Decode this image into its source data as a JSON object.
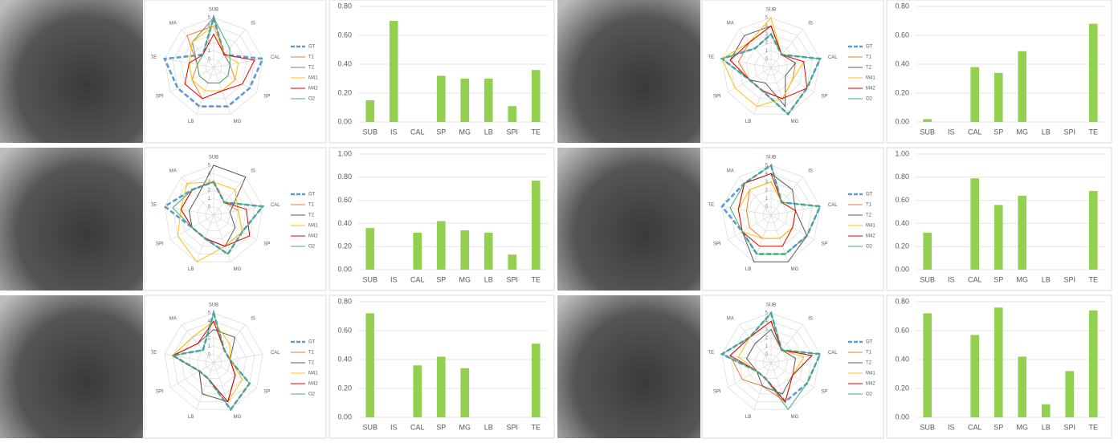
{
  "chart_data": [
    {
      "type": "radar",
      "axes": [
        "SUB",
        "IS",
        "CAL",
        "SP",
        "MG",
        "LB",
        "SPI",
        "TE",
        "MA"
      ],
      "rlim": [
        -1,
        5
      ],
      "rticks": [
        0,
        1,
        2,
        3,
        4,
        5
      ],
      "series": [
        {
          "name": "GT",
          "color": "#5b9bd5",
          "dash": true,
          "values": [
            5,
            1,
            5,
            4,
            4,
            4,
            4,
            5,
            1
          ]
        },
        {
          "name": "T1",
          "color": "#ed7d31",
          "values": [
            4,
            1,
            1,
            2,
            2,
            3,
            2,
            1,
            4
          ]
        },
        {
          "name": "T2",
          "color": "#7f7f7f",
          "values": [
            5,
            1,
            1,
            1,
            1,
            1,
            1,
            1,
            3
          ]
        },
        {
          "name": "M41",
          "color": "#ffc000",
          "values": [
            4,
            1,
            2,
            2,
            2,
            2,
            2,
            2,
            3
          ]
        },
        {
          "name": "M42",
          "color": "#e00000",
          "values": [
            3,
            1,
            4,
            3,
            2,
            3,
            3,
            2,
            1
          ]
        },
        {
          "name": "O2",
          "color": "#3fae73",
          "values": [
            5,
            2,
            1,
            1,
            1,
            1,
            1,
            1,
            1
          ]
        }
      ]
    },
    {
      "type": "bar",
      "categories": [
        "SUB",
        "IS",
        "CAL",
        "SP",
        "MG",
        "LB",
        "SPI",
        "TE"
      ],
      "values": [
        0.15,
        0.7,
        0,
        0.32,
        0.3,
        0.3,
        0.11,
        0.36
      ],
      "color": "#92d050",
      "ylim": [
        0,
        0.8
      ],
      "yticks": [
        {
          "value": 0,
          "label": "0.00"
        },
        {
          "value": 0.2,
          "label": "0.20"
        },
        {
          "value": 0.4,
          "label": "0.40"
        },
        {
          "value": 0.6,
          "label": "0.60"
        },
        {
          "value": 0.8,
          "label": "0.80"
        }
      ],
      "grid": true
    },
    {
      "type": "radar",
      "axes": [
        "SUB",
        "IS",
        "CAL",
        "SP",
        "MG",
        "LB",
        "SPI",
        "TE",
        "MA"
      ],
      "rlim": [
        -1,
        5
      ],
      "rticks": [
        0,
        1,
        2,
        3,
        4,
        5
      ],
      "series": [
        {
          "name": "GT",
          "color": "#5b9bd5",
          "dash": true,
          "values": [
            3,
            1,
            5,
            4,
            5,
            2,
            2,
            5,
            2
          ]
        },
        {
          "name": "T1",
          "color": "#ed7d31",
          "values": [
            4,
            1,
            2,
            2,
            3,
            2,
            2,
            3,
            3
          ]
        },
        {
          "name": "T2",
          "color": "#595959",
          "values": [
            4,
            1,
            2,
            1,
            4,
            1,
            2,
            4,
            4
          ]
        },
        {
          "name": "M41",
          "color": "#ffc000",
          "values": [
            5,
            1,
            3,
            2,
            3,
            4,
            4,
            5,
            3
          ]
        },
        {
          "name": "M42",
          "color": "#e00000",
          "values": [
            4,
            1,
            3,
            4,
            3,
            2,
            2,
            4,
            3
          ]
        },
        {
          "name": "O2",
          "color": "#3fae73",
          "values": [
            3,
            1,
            5,
            4,
            5,
            2,
            2,
            5,
            2
          ]
        }
      ]
    },
    {
      "type": "bar",
      "categories": [
        "SUB",
        "IS",
        "CAL",
        "SP",
        "MG",
        "LB",
        "SPI",
        "TE"
      ],
      "values": [
        0.02,
        0,
        0.38,
        0.34,
        0.49,
        0,
        0,
        0.68
      ],
      "color": "#92d050",
      "ylim": [
        0,
        0.8
      ],
      "yticks": [
        {
          "value": 0,
          "label": "0.00"
        },
        {
          "value": 0.2,
          "label": "0.20"
        },
        {
          "value": 0.4,
          "label": "0.40"
        },
        {
          "value": 0.6,
          "label": "0.60"
        },
        {
          "value": 0.8,
          "label": "0.80"
        }
      ],
      "grid": true
    },
    {
      "type": "radar",
      "axes": [
        "SUB",
        "IS",
        "CAL",
        "SP",
        "MG",
        "LB",
        "SPI",
        "TE",
        "MA"
      ],
      "rlim": [
        -1,
        5
      ],
      "rticks": [
        0,
        1,
        2,
        3,
        4,
        5
      ],
      "series": [
        {
          "name": "GT",
          "color": "#5b9bd5",
          "dash": true,
          "values": [
            3,
            1,
            5,
            3,
            4,
            2,
            2,
            5,
            3
          ]
        },
        {
          "name": "T1",
          "color": "#ed7d31",
          "values": [
            3,
            1,
            2,
            3,
            3,
            2,
            2,
            3,
            3
          ]
        },
        {
          "name": "T2",
          "color": "#595959",
          "values": [
            5,
            5,
            1,
            2,
            3,
            2,
            2,
            2,
            2
          ]
        },
        {
          "name": "M41",
          "color": "#ffc000",
          "values": [
            3,
            3,
            2,
            3,
            3,
            5,
            4,
            3,
            4
          ]
        },
        {
          "name": "M42",
          "color": "#e00000",
          "values": [
            3,
            1,
            3,
            4,
            3,
            2,
            2,
            3,
            3
          ]
        },
        {
          "name": "O2",
          "color": "#3fae73",
          "values": [
            3,
            1,
            5,
            3,
            4,
            2,
            2,
            4,
            3
          ]
        }
      ]
    },
    {
      "type": "bar",
      "categories": [
        "SUB",
        "IS",
        "CAL",
        "SP",
        "MG",
        "LB",
        "SPI",
        "TE"
      ],
      "values": [
        0.36,
        0,
        0.32,
        0.42,
        0.34,
        0.32,
        0.13,
        0.77
      ],
      "color": "#92d050",
      "ylim": [
        0,
        1
      ],
      "yticks": [
        {
          "value": 0,
          "label": "0.00"
        },
        {
          "value": 0.2,
          "label": "0.20"
        },
        {
          "value": 0.4,
          "label": "0.40"
        },
        {
          "value": 0.6,
          "label": "0.60"
        },
        {
          "value": 0.8,
          "label": "0.80"
        },
        {
          "value": 1,
          "label": "1.00"
        }
      ],
      "grid": true
    },
    {
      "type": "radar",
      "axes": [
        "SUB",
        "IS",
        "CAL",
        "SP",
        "MG",
        "LB",
        "SPI",
        "TE",
        "MA"
      ],
      "rlim": [
        -1,
        5
      ],
      "rticks": [
        0,
        1,
        2,
        3,
        4,
        5
      ],
      "series": [
        {
          "name": "GT",
          "color": "#5b9bd5",
          "dash": true,
          "values": [
            5,
            1,
            5,
            4,
            4,
            4,
            3,
            5,
            4
          ]
        },
        {
          "name": "T1",
          "color": "#ed7d31",
          "values": [
            3,
            1,
            2,
            2,
            2,
            2,
            2,
            2,
            3
          ]
        },
        {
          "name": "T2",
          "color": "#595959",
          "values": [
            4,
            3,
            2,
            4,
            5,
            5,
            3,
            3,
            4
          ]
        },
        {
          "name": "M41",
          "color": "#ffc000",
          "values": [
            3,
            1,
            2,
            2,
            2,
            2,
            3,
            3,
            3
          ]
        },
        {
          "name": "M42",
          "color": "#e00000",
          "values": [
            4,
            1,
            2,
            2,
            3,
            3,
            3,
            3,
            4
          ]
        },
        {
          "name": "O2",
          "color": "#3fae73",
          "values": [
            5,
            1,
            5,
            4,
            4,
            4,
            3,
            4,
            4
          ]
        }
      ]
    },
    {
      "type": "bar",
      "categories": [
        "SUB",
        "IS",
        "CAL",
        "SP",
        "MG",
        "LB",
        "SPI",
        "TE"
      ],
      "values": [
        0.32,
        0,
        0.79,
        0.56,
        0.64,
        0,
        0,
        0.68
      ],
      "color": "#92d050",
      "ylim": [
        0,
        1
      ],
      "yticks": [
        {
          "value": 0,
          "label": "0.00"
        },
        {
          "value": 0.2,
          "label": "0.20"
        },
        {
          "value": 0.4,
          "label": "0.40"
        },
        {
          "value": 0.6,
          "label": "0.60"
        },
        {
          "value": 0.8,
          "label": "0.80"
        },
        {
          "value": 1,
          "label": "1.00"
        }
      ],
      "grid": true
    },
    {
      "type": "radar",
      "axes": [
        "SUB",
        "IS",
        "CAL",
        "SP",
        "MG",
        "LB",
        "SPI",
        "TE",
        "MA"
      ],
      "rlim": [
        -1,
        5
      ],
      "rticks": [
        0,
        1,
        2,
        3,
        4,
        5
      ],
      "series": [
        {
          "name": "GT",
          "color": "#5b9bd5",
          "dash": true,
          "values": [
            5,
            1,
            1,
            4,
            5,
            1,
            1,
            4,
            1
          ]
        },
        {
          "name": "T1",
          "color": "#ed7d31",
          "values": [
            4,
            1,
            1,
            2,
            4,
            3,
            1,
            4,
            3
          ]
        },
        {
          "name": "T2",
          "color": "#595959",
          "values": [
            3,
            3,
            1,
            2,
            4,
            3,
            1,
            4,
            2
          ]
        },
        {
          "name": "M41",
          "color": "#ffc000",
          "values": [
            4,
            2,
            1,
            3,
            4,
            1,
            1,
            4,
            3
          ]
        },
        {
          "name": "M42",
          "color": "#e00000",
          "values": [
            4,
            1,
            1,
            2,
            4,
            1,
            1,
            4,
            2
          ]
        },
        {
          "name": "O2",
          "color": "#3fae73",
          "values": [
            5,
            1,
            1,
            4,
            5,
            1,
            1,
            4,
            1
          ]
        }
      ]
    },
    {
      "type": "bar",
      "categories": [
        "SUB",
        "IS",
        "CAL",
        "SP",
        "MG",
        "LB",
        "SPI",
        "TE"
      ],
      "values": [
        0.72,
        0,
        0.36,
        0.42,
        0.34,
        0,
        0,
        0.51
      ],
      "color": "#92d050",
      "ylim": [
        0,
        0.8
      ],
      "yticks": [
        {
          "value": 0,
          "label": "0.00"
        },
        {
          "value": 0.2,
          "label": "0.20"
        },
        {
          "value": 0.4,
          "label": "0.40"
        },
        {
          "value": 0.6,
          "label": "0.60"
        },
        {
          "value": 0.8,
          "label": "0.80"
        }
      ],
      "grid": true
    },
    {
      "type": "radar",
      "axes": [
        "SUB",
        "IS",
        "CAL",
        "SP",
        "MG",
        "LB",
        "SPI",
        "TE",
        "MA"
      ],
      "rlim": [
        -1,
        5
      ],
      "rticks": [
        0,
        1,
        2,
        3,
        4,
        5
      ],
      "series": [
        {
          "name": "GT",
          "color": "#5b9bd5",
          "dash": true,
          "values": [
            5,
            1,
            5,
            4,
            4,
            1,
            1,
            5,
            3
          ]
        },
        {
          "name": "T1",
          "color": "#ed7d31",
          "values": [
            4,
            1,
            4,
            2,
            4,
            2,
            3,
            4,
            3
          ]
        },
        {
          "name": "T2",
          "color": "#595959",
          "values": [
            3,
            1,
            2,
            2,
            3,
            2,
            1,
            2,
            2
          ]
        },
        {
          "name": "M41",
          "color": "#ffc000",
          "values": [
            4,
            1,
            3,
            2,
            4,
            1,
            1,
            3,
            3
          ]
        },
        {
          "name": "M42",
          "color": "#e00000",
          "values": [
            4,
            1,
            4,
            2,
            4,
            1,
            1,
            4,
            3
          ]
        },
        {
          "name": "O2",
          "color": "#3fae73",
          "values": [
            5,
            1,
            5,
            4,
            5,
            1,
            1,
            5,
            3
          ]
        }
      ]
    },
    {
      "type": "bar",
      "categories": [
        "SUB",
        "IS",
        "CAL",
        "SP",
        "MG",
        "LB",
        "SPI",
        "TE"
      ],
      "values": [
        0.72,
        0,
        0.57,
        0.76,
        0.42,
        0.09,
        0.32,
        0.74
      ],
      "color": "#92d050",
      "ylim": [
        0,
        0.8
      ],
      "yticks": [
        {
          "value": 0,
          "label": "0.00"
        },
        {
          "value": 0.2,
          "label": "0.20"
        },
        {
          "value": 0.4,
          "label": "0.40"
        },
        {
          "value": 0.6,
          "label": "0.60"
        },
        {
          "value": 0.8,
          "label": "0.80"
        }
      ],
      "grid": true
    }
  ]
}
